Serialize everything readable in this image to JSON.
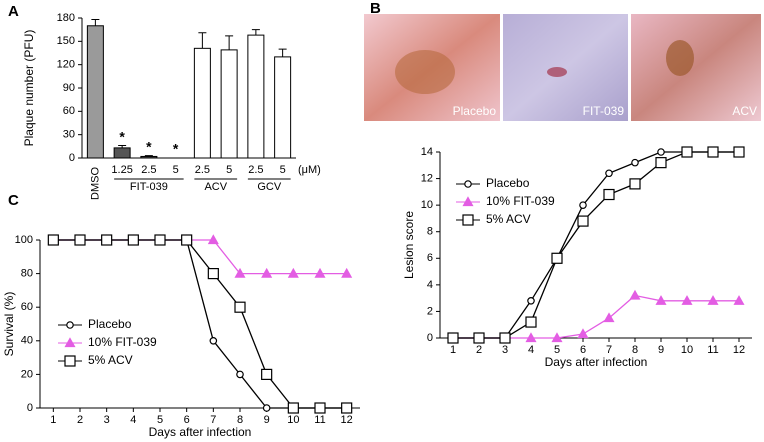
{
  "chart_data": [
    {
      "type": "bar",
      "panel_label": "A",
      "ylabel": "Plaque number (PFU)",
      "categories": [
        "DMSO",
        "1.25",
        "2.5",
        "5",
        "2.5",
        "5",
        "2.5",
        "5"
      ],
      "groups": [
        "FIT-039",
        "ACV",
        "GCV"
      ],
      "x_unit": "(μM)",
      "values": [
        170,
        13,
        2,
        0,
        141,
        139,
        158,
        130
      ],
      "errors": [
        8,
        3,
        1,
        0,
        20,
        18,
        7,
        10
      ],
      "colors": [
        "#9a9a9a",
        "#555555",
        "#555555",
        "#555555",
        "#ffffff",
        "#ffffff",
        "#ffffff",
        "#ffffff"
      ],
      "annotations": [
        null,
        "*",
        "*",
        "*",
        null,
        null,
        null,
        null
      ],
      "ylim": [
        0,
        180
      ],
      "yticks": [
        0,
        30,
        60,
        90,
        120,
        150,
        180
      ]
    },
    {
      "type": "line",
      "panel_label": "B",
      "xlabel": "Days after infection",
      "ylabel": "Lesion score",
      "x": [
        1,
        2,
        3,
        4,
        5,
        6,
        7,
        8,
        9,
        10,
        11,
        12
      ],
      "series": [
        {
          "name": "Placebo",
          "color": "#000000",
          "marker": "circle",
          "values": [
            0,
            0,
            0,
            2.8,
            6,
            10,
            12.4,
            13.2,
            14,
            14,
            14,
            14
          ]
        },
        {
          "name": "10% FIT-039",
          "color": "#e35de3",
          "marker": "triangle",
          "values": [
            0,
            0,
            0,
            0,
            0,
            0.3,
            1.5,
            3.2,
            2.8,
            2.8,
            2.8,
            2.8
          ]
        },
        {
          "name": "5% ACV",
          "color": "#000000",
          "marker": "square",
          "values": [
            0,
            0,
            0,
            1.2,
            6,
            8.8,
            10.8,
            11.6,
            13.2,
            14,
            14,
            14
          ]
        }
      ],
      "xlim": [
        0.5,
        12.5
      ],
      "xticks": [
        1,
        2,
        3,
        4,
        5,
        6,
        7,
        8,
        9,
        10,
        11,
        12
      ],
      "ylim": [
        0,
        14
      ],
      "yticks": [
        0,
        2,
        4,
        6,
        8,
        10,
        12,
        14
      ]
    },
    {
      "type": "line",
      "panel_label": "C",
      "xlabel": "Days after infection",
      "ylabel": "Survival (%)",
      "x": [
        1,
        2,
        3,
        4,
        5,
        6,
        7,
        8,
        9,
        10,
        11,
        12
      ],
      "series": [
        {
          "name": "Placebo",
          "color": "#000000",
          "marker": "circle",
          "values": [
            100,
            100,
            100,
            100,
            100,
            100,
            40,
            20,
            0,
            0,
            0,
            0
          ]
        },
        {
          "name": "10% FIT-039",
          "color": "#e35de3",
          "marker": "triangle",
          "values": [
            100,
            100,
            100,
            100,
            100,
            100,
            100,
            80,
            80,
            80,
            80,
            80
          ]
        },
        {
          "name": "5% ACV",
          "color": "#000000",
          "marker": "square",
          "values": [
            100,
            100,
            100,
            100,
            100,
            100,
            80,
            60,
            20,
            0,
            0,
            0
          ]
        }
      ],
      "xlim": [
        0.5,
        12.5
      ],
      "xticks": [
        1,
        2,
        3,
        4,
        5,
        6,
        7,
        8,
        9,
        10,
        11,
        12
      ],
      "ylim": [
        0,
        100
      ],
      "yticks": [
        0,
        20,
        40,
        60,
        80,
        100
      ]
    }
  ],
  "photos": {
    "labels": [
      "Placebo",
      "FIT-039",
      "ACV"
    ]
  }
}
